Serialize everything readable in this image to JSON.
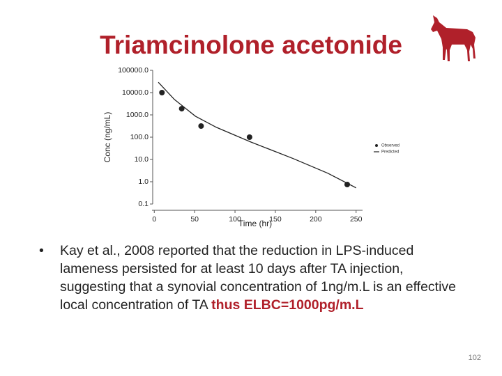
{
  "slide": {
    "title": "Triamcinolone acetonide",
    "bullet": [
      "Kay et al., 2008 reported that the reduction in LPS-induced lameness persisted for at least 10 days after TA injection, suggesting that a synovial concentration of 1ng/m.L is an effective local concentration of TA ",
      "thus ELBC=1000pg/m.L"
    ],
    "page_number": "102"
  },
  "chart_data": {
    "type": "scatter",
    "x_label": "Time (hr)",
    "y_label": "Conc (ng/mL)",
    "xlim": [
      -8,
      258
    ],
    "xticks": [
      0,
      50,
      100,
      150,
      200,
      250
    ],
    "ylim": [
      0.1,
      100000
    ],
    "y_scale": "log",
    "yticks": [
      {
        "value": 100000,
        "label": "100000.0"
      },
      {
        "value": 10000,
        "label": "10000.0"
      },
      {
        "value": 1000,
        "label": "1000.0"
      },
      {
        "value": 100,
        "label": "100.0"
      },
      {
        "value": 10,
        "label": "10.0"
      },
      {
        "value": 1,
        "label": "1.0"
      },
      {
        "value": 0.1,
        "label": "0.1"
      }
    ],
    "legend": "right",
    "series": [
      {
        "name": "Observed",
        "color": "#222222",
        "style": "markers",
        "x": [
          9.5,
          34,
          58,
          118,
          239
        ],
        "values": [
          10000,
          1900,
          316,
          100,
          0.75
        ]
      },
      {
        "name": "Predicted",
        "color": "#222222",
        "style": "line",
        "x": [
          5,
          25,
          51,
          77,
          120,
          172,
          215,
          250
        ],
        "values": [
          29000,
          4900,
          870,
          275,
          60,
          11,
          2.4,
          0.53
        ]
      }
    ]
  }
}
